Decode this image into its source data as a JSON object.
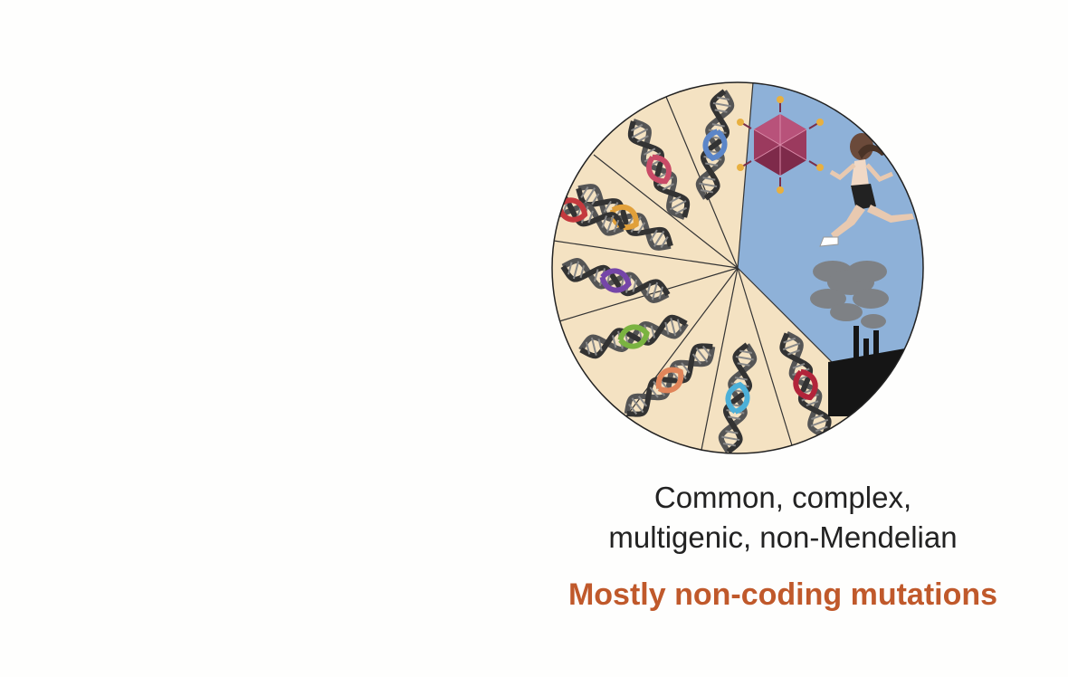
{
  "caption": {
    "line1": "Common, complex,",
    "line2": "multigenic, non-Mendelian"
  },
  "subtitle": "Mostly non-coding mutations",
  "colors": {
    "gene_segment_fill": "#f4e2c2",
    "environment_fill": "#8eb1d8",
    "outline": "#222222",
    "subtitle": "#c0592b",
    "factory": "#151515"
  },
  "genes": [
    {
      "name": "gene-1",
      "highlight": "#c94b67"
    },
    {
      "name": "gene-2",
      "highlight": "#e1a03a"
    },
    {
      "name": "gene-3",
      "highlight": "#5c86c8"
    },
    {
      "name": "gene-4",
      "highlight": "#b2243a"
    },
    {
      "name": "gene-5",
      "highlight": "#c43a3e"
    },
    {
      "name": "gene-6",
      "highlight": "#7546a8"
    },
    {
      "name": "gene-7",
      "highlight": "#7ab341"
    },
    {
      "name": "gene-8",
      "highlight": "#e1855a"
    },
    {
      "name": "gene-9",
      "highlight": "#4db0d8"
    }
  ],
  "environment_icons": [
    "virus-icon",
    "runner-icon",
    "smoke-icon",
    "factory-icon"
  ]
}
